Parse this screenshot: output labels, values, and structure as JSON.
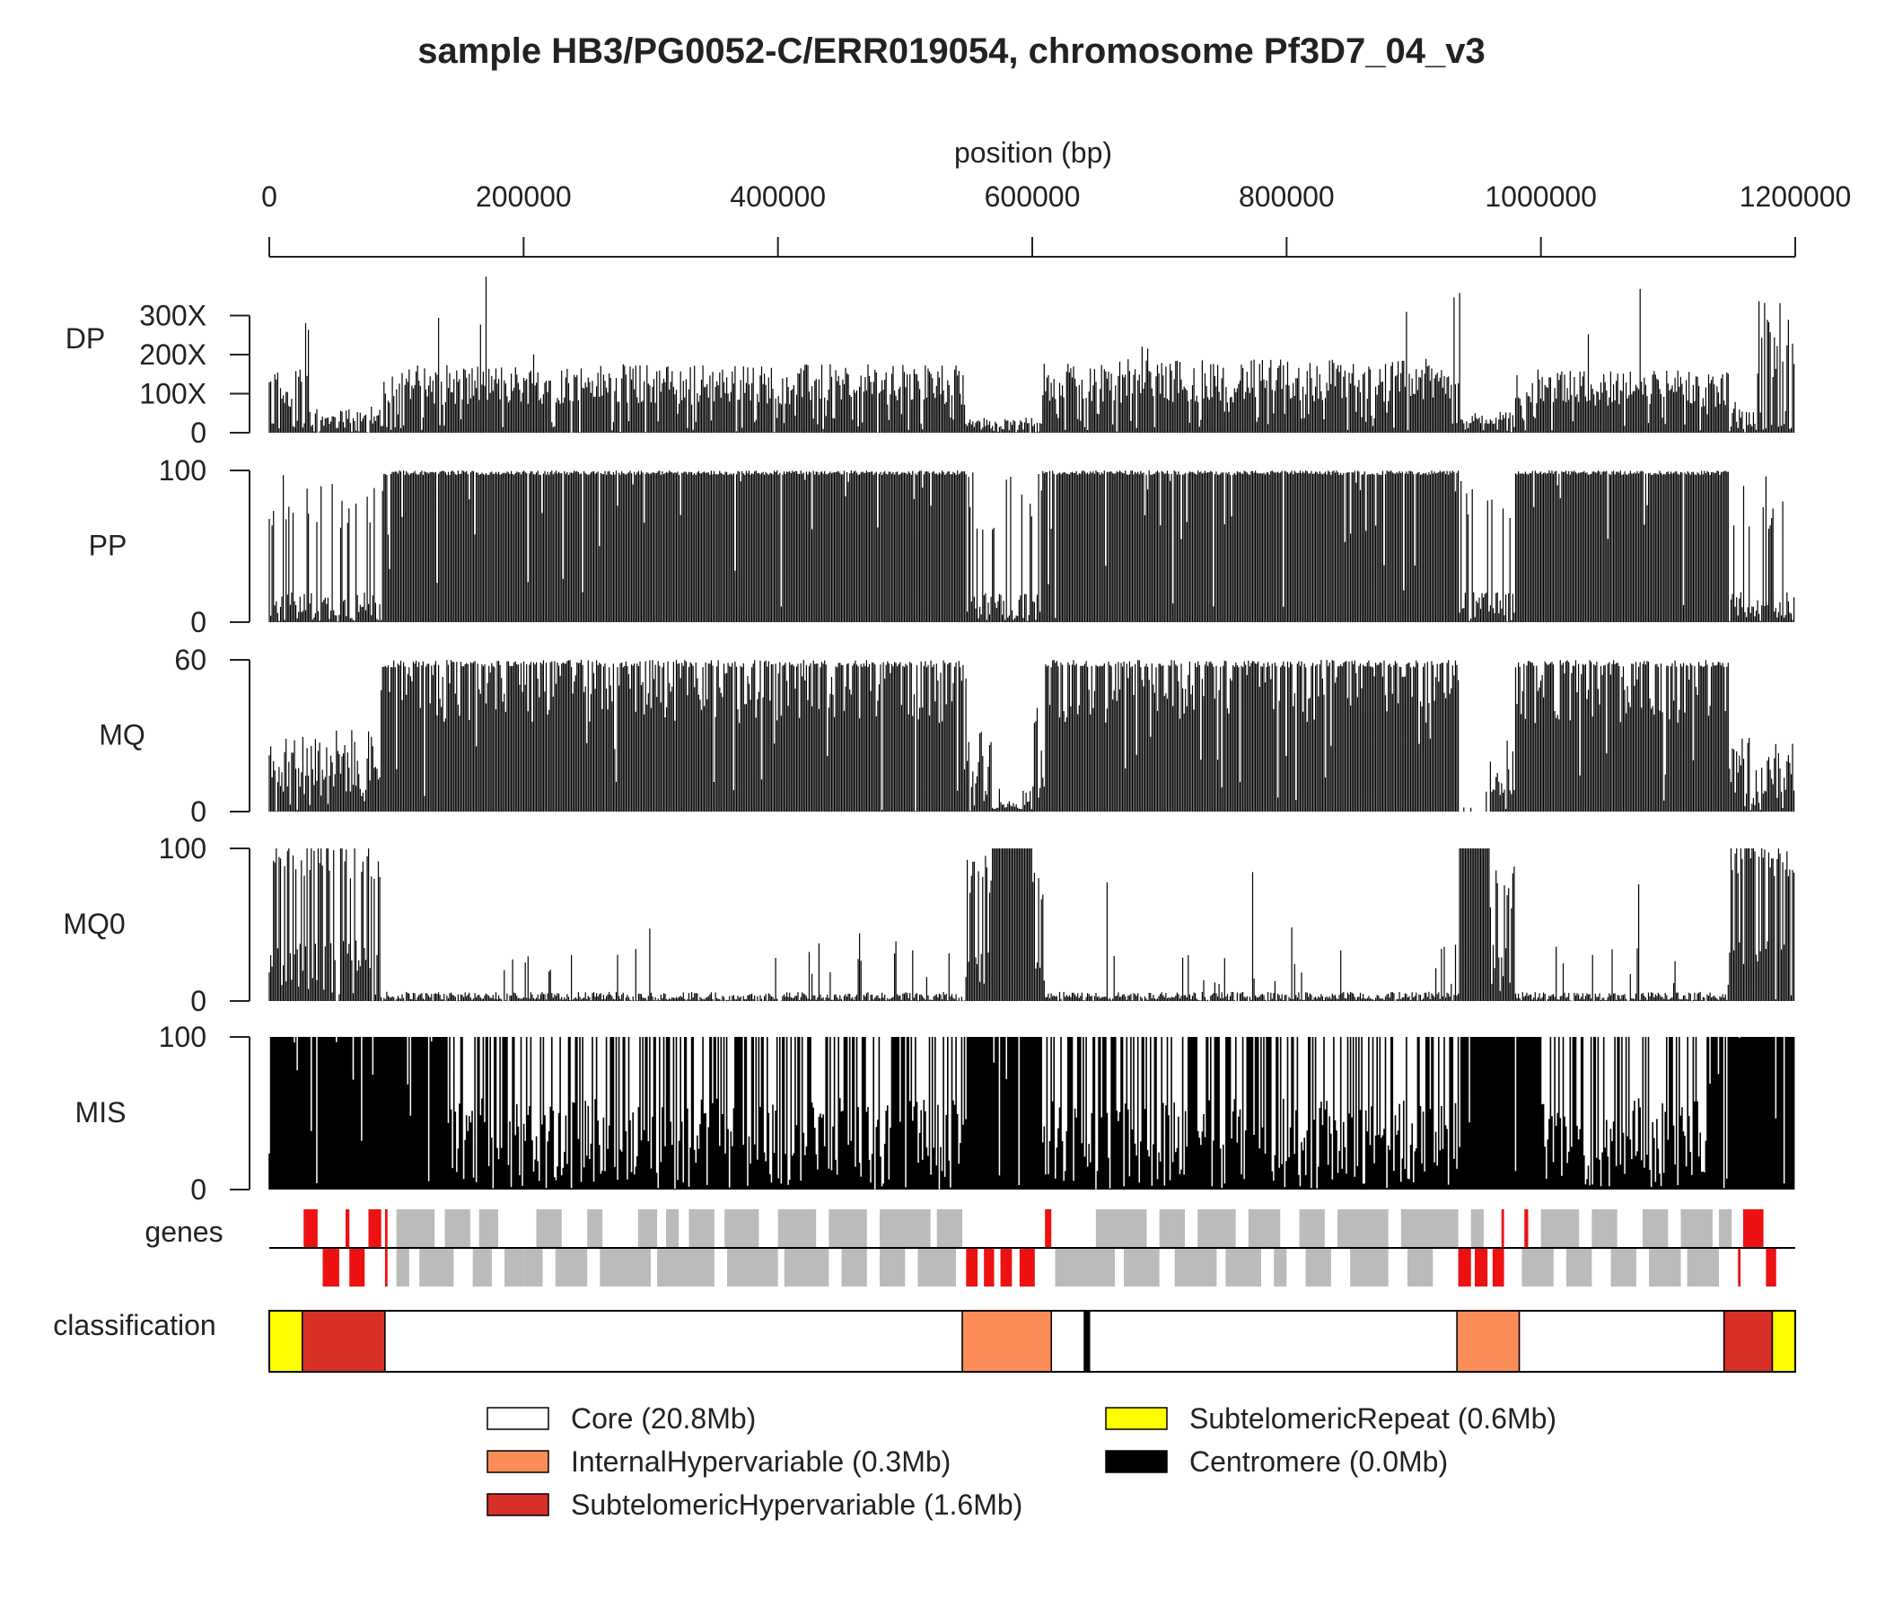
{
  "chart_data": {
    "type": "genome-track-panel",
    "title": "sample HB3/PG0052-C/ERR019054, chromosome Pf3D7_04_v3",
    "xlabel": "position (bp)",
    "xlim": [
      0,
      1200000
    ],
    "x_ticks": [
      0,
      200000,
      400000,
      600000,
      800000,
      1000000,
      1200000
    ],
    "x_tick_labels": [
      "0",
      "200000",
      "400000",
      "600000",
      "800000",
      "1000000",
      "1200000"
    ],
    "tracks": [
      {
        "name": "DP",
        "ylim": [
          0,
          400
        ],
        "ticks": [
          0,
          100,
          200,
          300
        ],
        "tick_labels": [
          "0",
          "100X",
          "200X",
          "300X"
        ],
        "typical": 130,
        "low_regions": [
          [
            0,
            90000
          ],
          [
            548000,
            608000
          ],
          [
            936000,
            980000
          ],
          [
            1148000,
            1200000
          ]
        ],
        "profile": [
          {
            "start": 0,
            "end": 30000,
            "level": 120
          },
          {
            "start": 30000,
            "end": 90000,
            "level": 50
          },
          {
            "start": 90000,
            "end": 548000,
            "level": 130
          },
          {
            "start": 548000,
            "end": 608000,
            "level": 30
          },
          {
            "start": 608000,
            "end": 936000,
            "level": 140
          },
          {
            "start": 936000,
            "end": 980000,
            "level": 40
          },
          {
            "start": 980000,
            "end": 1148000,
            "level": 120
          },
          {
            "start": 1148000,
            "end": 1170000,
            "level": 60
          },
          {
            "start": 1170000,
            "end": 1200000,
            "level": 250
          }
        ]
      },
      {
        "name": "PP",
        "ylim": [
          0,
          100
        ],
        "ticks": [
          0,
          100
        ],
        "tick_labels": [
          "0",
          "100"
        ],
        "typical": 98,
        "low_regions": [
          [
            0,
            90000
          ],
          [
            548000,
            608000
          ],
          [
            936000,
            980000
          ],
          [
            1148000,
            1200000
          ]
        ]
      },
      {
        "name": "MQ",
        "ylim": [
          0,
          60
        ],
        "ticks": [
          0,
          60
        ],
        "tick_labels": [
          "0",
          "60"
        ],
        "typical": 58,
        "profile": [
          {
            "start": 0,
            "end": 88000,
            "level": 22
          },
          {
            "start": 88000,
            "end": 548000,
            "level": 57
          },
          {
            "start": 548000,
            "end": 568000,
            "level": 22
          },
          {
            "start": 568000,
            "end": 600000,
            "level": 3
          },
          {
            "start": 600000,
            "end": 610000,
            "level": 30
          },
          {
            "start": 610000,
            "end": 936000,
            "level": 57
          },
          {
            "start": 936000,
            "end": 960000,
            "level": 0
          },
          {
            "start": 960000,
            "end": 980000,
            "level": 20
          },
          {
            "start": 980000,
            "end": 1148000,
            "level": 57
          },
          {
            "start": 1148000,
            "end": 1200000,
            "level": 20
          }
        ]
      },
      {
        "name": "MQ0",
        "ylim": [
          0,
          100
        ],
        "ticks": [
          0,
          100
        ],
        "tick_labels": [
          "0",
          "100"
        ],
        "typical": 2,
        "profile": [
          {
            "start": 0,
            "end": 88000,
            "level": 80
          },
          {
            "start": 88000,
            "end": 548000,
            "level": 2
          },
          {
            "start": 548000,
            "end": 568000,
            "level": 70
          },
          {
            "start": 568000,
            "end": 600000,
            "level": 100
          },
          {
            "start": 600000,
            "end": 610000,
            "level": 60
          },
          {
            "start": 610000,
            "end": 936000,
            "level": 2
          },
          {
            "start": 936000,
            "end": 960000,
            "level": 100
          },
          {
            "start": 960000,
            "end": 980000,
            "level": 60
          },
          {
            "start": 980000,
            "end": 1148000,
            "level": 2
          },
          {
            "start": 1148000,
            "end": 1200000,
            "level": 80
          }
        ]
      },
      {
        "name": "MIS",
        "ylim": [
          0,
          100
        ],
        "ticks": [
          0,
          100
        ],
        "tick_labels": [
          "0",
          "100"
        ],
        "dense_regions": [
          [
            0,
            140000
          ],
          [
            548000,
            608000
          ],
          [
            936000,
            1000000
          ],
          [
            1130000,
            1200000
          ]
        ]
      }
    ],
    "genes": {
      "label": "genes",
      "hypervariable_color": "#ee1111",
      "other_color": "#bbbbbb",
      "forward_red": [
        [
          27000,
          38000
        ],
        [
          60000,
          63000
        ],
        [
          78000,
          88000
        ],
        [
          91000,
          93000
        ],
        [
          610000,
          615000
        ],
        [
          969000,
          971000
        ],
        [
          987000,
          990000
        ],
        [
          1159000,
          1175000
        ]
      ],
      "forward_grey": [
        [
          100000,
          130000
        ],
        [
          138000,
          158000
        ],
        [
          165000,
          180000
        ],
        [
          210000,
          230000
        ],
        [
          250000,
          262000
        ],
        [
          290000,
          305000
        ],
        [
          312000,
          322000
        ],
        [
          330000,
          350000
        ],
        [
          358000,
          385000
        ],
        [
          400000,
          430000
        ],
        [
          440000,
          470000
        ],
        [
          480000,
          520000
        ],
        [
          525000,
          545000
        ],
        [
          650000,
          690000
        ],
        [
          700000,
          720000
        ],
        [
          730000,
          760000
        ],
        [
          770000,
          795000
        ],
        [
          810000,
          830000
        ],
        [
          840000,
          880000
        ],
        [
          890000,
          935000
        ],
        [
          945000,
          955000
        ],
        [
          1000000,
          1030000
        ],
        [
          1040000,
          1060000
        ],
        [
          1080000,
          1100000
        ],
        [
          1110000,
          1135000
        ],
        [
          1140000,
          1150000
        ]
      ],
      "reverse_red": [
        [
          42000,
          55000
        ],
        [
          63000,
          75000
        ],
        [
          91000,
          93000
        ],
        [
          548000,
          557000
        ],
        [
          562000,
          570000
        ],
        [
          575000,
          584000
        ],
        [
          590000,
          602000
        ],
        [
          935000,
          945000
        ],
        [
          948000,
          958000
        ],
        [
          962000,
          971000
        ],
        [
          1155000,
          1157000
        ],
        [
          1177000,
          1185000
        ]
      ],
      "reverse_grey": [
        [
          100000,
          110000
        ],
        [
          118000,
          145000
        ],
        [
          160000,
          175000
        ],
        [
          185000,
          200000
        ],
        [
          200000,
          215000
        ],
        [
          225000,
          250000
        ],
        [
          260000,
          300000
        ],
        [
          305000,
          350000
        ],
        [
          360000,
          400000
        ],
        [
          405000,
          440000
        ],
        [
          450000,
          470000
        ],
        [
          480000,
          500000
        ],
        [
          510000,
          540000
        ],
        [
          618000,
          665000
        ],
        [
          672000,
          700000
        ],
        [
          712000,
          745000
        ],
        [
          752000,
          780000
        ],
        [
          790000,
          800000
        ],
        [
          815000,
          835000
        ],
        [
          850000,
          880000
        ],
        [
          895000,
          915000
        ],
        [
          985000,
          1010000
        ],
        [
          1020000,
          1040000
        ],
        [
          1055000,
          1075000
        ],
        [
          1085000,
          1110000
        ],
        [
          1115000,
          1140000
        ]
      ]
    },
    "classification": {
      "label": "classification",
      "segments": [
        {
          "class": "SubtelomericRepeat",
          "start": 0,
          "end": 26000
        },
        {
          "class": "SubtelomericHypervariable",
          "start": 26000,
          "end": 91000
        },
        {
          "class": "Core",
          "start": 91000,
          "end": 545000
        },
        {
          "class": "InternalHypervariable",
          "start": 545000,
          "end": 615000
        },
        {
          "class": "Core",
          "start": 615000,
          "end": 641000
        },
        {
          "class": "Centromere",
          "start": 641000,
          "end": 645000
        },
        {
          "class": "Core",
          "start": 645000,
          "end": 934000
        },
        {
          "class": "InternalHypervariable",
          "start": 934000,
          "end": 983000
        },
        {
          "class": "Core",
          "start": 983000,
          "end": 1144000
        },
        {
          "class": "SubtelomericHypervariable",
          "start": 1144000,
          "end": 1182000
        },
        {
          "class": "SubtelomericRepeat",
          "start": 1182000,
          "end": 1200000
        }
      ]
    },
    "legend": {
      "placement": "bottom",
      "entries": [
        {
          "class": "Core",
          "label": "Core (20.8Mb)",
          "color": "#ffffff"
        },
        {
          "class": "InternalHypervariable",
          "label": "InternalHypervariable (0.3Mb)",
          "color": "#fc8d59"
        },
        {
          "class": "SubtelomericHypervariable",
          "label": "SubtelomericHypervariable (1.6Mb)",
          "color": "#d73027"
        },
        {
          "class": "SubtelomericRepeat",
          "label": "SubtelomericRepeat (0.6Mb)",
          "color": "#ffff00"
        },
        {
          "class": "Centromere",
          "label": "Centromere (0.0Mb)",
          "color": "#000000"
        }
      ]
    }
  }
}
